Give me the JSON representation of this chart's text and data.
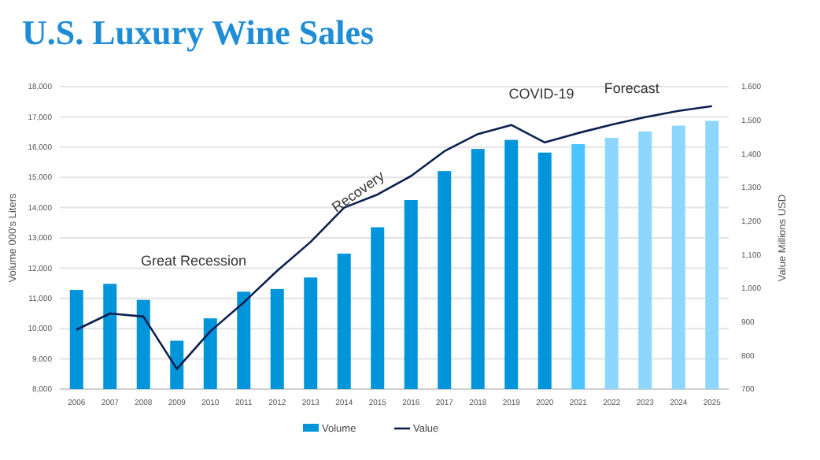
{
  "chart_data": {
    "type": "bar",
    "title": "U.S. Luxury Wine Sales",
    "categories": [
      "2006",
      "2007",
      "2008",
      "2009",
      "2010",
      "2011",
      "2012",
      "2013",
      "2014",
      "2015",
      "2016",
      "2017",
      "2018",
      "2019",
      "2020",
      "2021",
      "2022",
      "2023",
      "2024",
      "2025"
    ],
    "series": [
      {
        "name": "Volume",
        "color": "#0095da",
        "colors": [
          "#0095da",
          "#0095da",
          "#0095da",
          "#0095da",
          "#0095da",
          "#0095da",
          "#0095da",
          "#0095da",
          "#0095da",
          "#0095da",
          "#0095da",
          "#0095da",
          "#0095da",
          "#0095da",
          "#0095da",
          "#4cc4ff",
          "#8dd7ff",
          "#8dd7ff",
          "#8dd7ff",
          "#8dd7ff"
        ],
        "values": [
          11280,
          11480,
          10950,
          9600,
          10340,
          11220,
          11310,
          11690,
          12480,
          13350,
          14250,
          15210,
          15940,
          16240,
          15820,
          16100,
          16310,
          16520,
          16710,
          16870
        ]
      },
      {
        "name": "Value",
        "type": "line",
        "axis": "y2",
        "color": "#0d1f4f",
        "values": [
          877,
          925,
          916,
          760,
          872,
          958,
          1052,
          1138,
          1240,
          1279,
          1334,
          1408,
          1459,
          1486,
          1434,
          1462,
          1487,
          1509,
          1528,
          1542
        ]
      }
    ],
    "ylabel": "Volume 000's Liters",
    "y2label": "Value Millions USD",
    "ylim": [
      8000,
      18000
    ],
    "yticks": [
      {
        "value": 8000,
        "label": "8,000"
      },
      {
        "value": 9000,
        "label": "9,000"
      },
      {
        "value": 10000,
        "label": "10,000"
      },
      {
        "value": 11000,
        "label": "11,000"
      },
      {
        "value": 12000,
        "label": "12,000"
      },
      {
        "value": 13000,
        "label": "13,000"
      },
      {
        "value": 14000,
        "label": "14,000"
      },
      {
        "value": 15000,
        "label": "15,000"
      },
      {
        "value": 16000,
        "label": "16,000"
      },
      {
        "value": 17000,
        "label": "17,000"
      },
      {
        "value": 18000,
        "label": "18,000"
      }
    ],
    "y2lim": [
      700,
      1600
    ],
    "y2ticks": [
      700,
      800,
      900,
      {
        "value": 1000,
        "label": "1,000"
      },
      {
        "value": 1100,
        "label": "1,100"
      },
      {
        "value": 1200,
        "label": "1,200"
      },
      {
        "value": 1300,
        "label": "1,300"
      },
      {
        "value": 1400,
        "label": "1,400"
      },
      {
        "value": 1500,
        "label": "1,500"
      },
      {
        "value": 1600,
        "label": "1,600"
      }
    ],
    "annotations": [
      "Great Recession",
      "Recovery",
      "COVID-19",
      "Forecast"
    ],
    "grid": "y",
    "legend": "bottom",
    "marker": "none",
    "line_style": "solid"
  }
}
